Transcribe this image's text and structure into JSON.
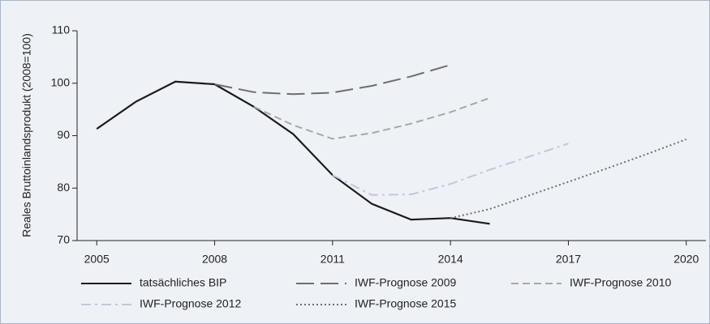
{
  "chart_data": {
    "type": "line",
    "y_label": "Reales Bruttoinlandsprodukt (2008=100)",
    "x": [
      2005,
      2006,
      2007,
      2008,
      2009,
      2010,
      2011,
      2012,
      2013,
      2014,
      2015,
      2016,
      2017,
      2018,
      2019,
      2020
    ],
    "xlim": [
      2004.5,
      2020.5
    ],
    "xticks": [
      2005,
      2008,
      2011,
      2014,
      2017,
      2020
    ],
    "ylim": [
      70,
      110
    ],
    "yticks": [
      70,
      80,
      90,
      100,
      110
    ],
    "series": [
      {
        "name": "tatsächliches BIP",
        "color": "#1a1a1a",
        "dash": "solid",
        "values": [
          91.3,
          96.5,
          100.3,
          99.8,
          95.5,
          90.3,
          82.5,
          77,
          74,
          74.3,
          73.2,
          null,
          null,
          null,
          null,
          null
        ]
      },
      {
        "name": "IWF-Prognose 2009",
        "color": "#6e6e6e",
        "dash": "long",
        "values": [
          null,
          null,
          null,
          99.8,
          98.3,
          97.9,
          98.2,
          99.5,
          101.3,
          103.5,
          null,
          null,
          null,
          null,
          null,
          null
        ]
      },
      {
        "name": "IWF-Prognose 2010",
        "color": "#a8a8a8",
        "dash": "short",
        "values": [
          null,
          null,
          null,
          null,
          95.5,
          92,
          89.4,
          90.5,
          92.3,
          94.5,
          97.2,
          null,
          null,
          null,
          null,
          null
        ]
      },
      {
        "name": "IWF-Prognose 2012",
        "color": "#c4c6dc",
        "dash": "dashdot",
        "values": [
          null,
          null,
          null,
          null,
          null,
          null,
          82.5,
          78.7,
          78.8,
          80.8,
          83.5,
          86,
          88.5,
          null,
          null,
          null
        ]
      },
      {
        "name": "IWF-Prognose 2015",
        "color": "#6e6e6e",
        "dash": "dotted",
        "values": [
          null,
          null,
          null,
          null,
          null,
          null,
          null,
          null,
          null,
          74.3,
          76,
          78.6,
          81.2,
          83.8,
          86.5,
          89.3
        ]
      }
    ]
  }
}
